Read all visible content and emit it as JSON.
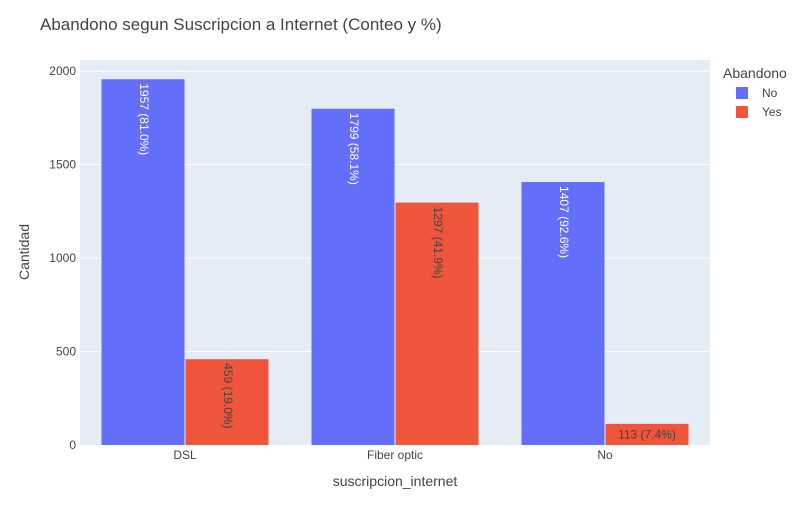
{
  "chart_data": {
    "type": "bar",
    "title": "Abandono segun Suscripcion a Internet (Conteo y %)",
    "xlabel": "suscripcion_internet",
    "ylabel": "Cantidad",
    "categories": [
      "DSL",
      "Fiber optic",
      "No"
    ],
    "ylim": [
      0,
      2060
    ],
    "yticks": [
      0,
      500,
      1000,
      1500,
      2000
    ],
    "ytick_labels": [
      "0",
      "500",
      "1000",
      "1500",
      "2000"
    ],
    "grid": true,
    "legend": {
      "title": "Abandono",
      "placement": "top-right"
    },
    "series": [
      {
        "name": "No",
        "color": "#636efa",
        "label_color": "#ffffff",
        "values": [
          1957,
          1799,
          1407
        ],
        "labels": [
          "1957 (81.0%)",
          "1799 (58.1%)",
          "1407 (92.6%)"
        ]
      },
      {
        "name": "Yes",
        "color": "#ef553b",
        "label_color": "#444444",
        "values": [
          459,
          1297,
          113
        ],
        "labels": [
          "459 (19.0%)",
          "1297 (41.9%)",
          "113 (7.4%)"
        ]
      }
    ]
  }
}
